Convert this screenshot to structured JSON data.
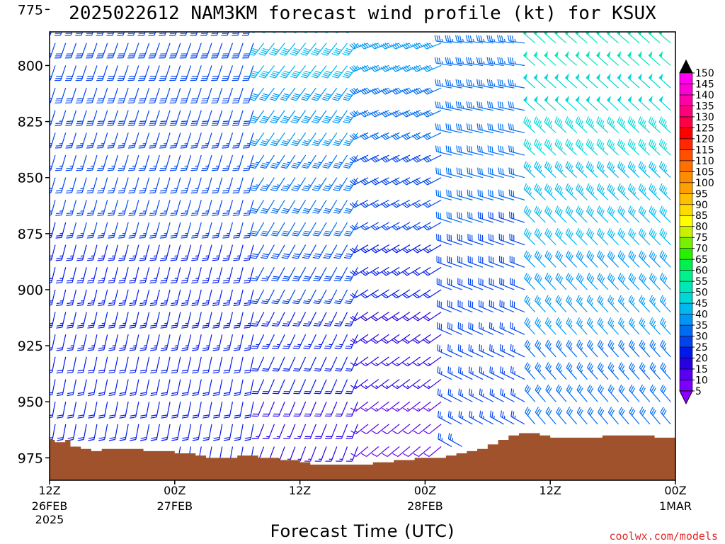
{
  "chart_data": {
    "type": "wind-barb",
    "title": "2025022612 NAM3KM forecast wind profile (kt) for KSUX",
    "xlabel": "Forecast Time (UTC)",
    "ylabel": "",
    "y_axis": {
      "reversed": true,
      "range": [
        785,
        985
      ],
      "ticks": [
        775,
        800,
        825,
        850,
        875,
        900,
        925,
        950,
        975
      ]
    },
    "x_axis": {
      "range_hours": [
        0,
        60
      ],
      "ticks": [
        {
          "hour": 0,
          "label": "12Z",
          "sub1": "26FEB",
          "sub2": "2025"
        },
        {
          "hour": 12,
          "label": "00Z",
          "sub1": "27FEB",
          "sub2": ""
        },
        {
          "hour": 24,
          "label": "12Z",
          "sub1": "",
          "sub2": ""
        },
        {
          "hour": 36,
          "label": "00Z",
          "sub1": "28FEB",
          "sub2": ""
        },
        {
          "hour": 48,
          "label": "12Z",
          "sub1": "",
          "sub2": ""
        },
        {
          "hour": 60,
          "label": "00Z",
          "sub1": "1MAR",
          "sub2": ""
        }
      ]
    },
    "colorbar": {
      "units": "kt",
      "labels": [
        5,
        10,
        15,
        20,
        25,
        30,
        35,
        40,
        45,
        50,
        55,
        60,
        65,
        70,
        75,
        80,
        85,
        90,
        95,
        100,
        105,
        110,
        115,
        120,
        125,
        130,
        135,
        140,
        145,
        150
      ],
      "colors": [
        "#7a00ff",
        "#5a00f0",
        "#2800e6",
        "#0019ea",
        "#0044ee",
        "#006cf2",
        "#0096f6",
        "#00b8f0",
        "#00d8d8",
        "#00e8b8",
        "#00f08a",
        "#00f050",
        "#28f000",
        "#78f000",
        "#c8f000",
        "#ffff00",
        "#ffdc00",
        "#ffc000",
        "#ffa000",
        "#ff8c00",
        "#ff7000",
        "#ff5000",
        "#ff2800",
        "#ff0000",
        "#ff0046",
        "#ff007a",
        "#ff00a8",
        "#ff00d2",
        "#ff00f0"
      ],
      "under_color": "#8c00ff",
      "over_color": "#000000"
    },
    "surface_pressure": {
      "color": "#a0522d",
      "hours": [
        0,
        0.5,
        1,
        1.5,
        2,
        3,
        4,
        5,
        6,
        7,
        8,
        9,
        10,
        11,
        12,
        13,
        14,
        15,
        16,
        17,
        18,
        19,
        20,
        21,
        22,
        23,
        24,
        25,
        26,
        27,
        28,
        29,
        30,
        31,
        32,
        33,
        34,
        35,
        36,
        37,
        38,
        39,
        40,
        41,
        42,
        43,
        44,
        45,
        46,
        47,
        48,
        49,
        50,
        51,
        52,
        53,
        54,
        55,
        56,
        57,
        58,
        59,
        60
      ],
      "pressure": [
        967,
        968,
        968,
        967,
        970,
        971,
        972,
        971,
        971,
        971,
        971,
        972,
        972,
        972,
        973,
        973,
        974,
        975,
        975,
        975,
        974,
        974,
        975,
        975,
        976,
        976,
        977,
        978,
        978,
        978,
        978,
        978,
        978,
        977,
        977,
        976,
        976,
        975,
        975,
        975,
        974,
        973,
        972,
        971,
        969,
        967,
        965,
        964,
        964,
        965,
        966,
        966,
        966,
        966,
        966,
        965,
        965,
        965,
        965,
        965,
        966,
        966,
        967
      ]
    },
    "wind_profile": {
      "columns_every_hours": 1,
      "levels_every_mb": 10,
      "top_mb": 770,
      "segments": [
        {
          "from_hour": 0,
          "to_hour": 20,
          "upper_dir_deg": 200,
          "upper_speed_kt": 30,
          "lower_dir_deg": 190,
          "lower_speed_kt": 20
        },
        {
          "from_hour": 20,
          "to_hour": 30,
          "upper_dir_deg": 220,
          "upper_speed_kt": 45,
          "lower_dir_deg": 200,
          "lower_speed_kt": 15
        },
        {
          "from_hour": 30,
          "to_hour": 38,
          "upper_dir_deg": 250,
          "upper_speed_kt": 40,
          "lower_dir_deg": 230,
          "lower_speed_kt": 10
        },
        {
          "from_hour": 38,
          "to_hour": 46,
          "upper_dir_deg": 275,
          "upper_speed_kt": 35,
          "lower_dir_deg": 300,
          "lower_speed_kt": 25
        },
        {
          "from_hour": 46,
          "to_hour": 60,
          "upper_dir_deg": 310,
          "upper_speed_kt": 55,
          "lower_dir_deg": 320,
          "lower_speed_kt": 30
        }
      ]
    }
  },
  "credit": "coolwx.com/models"
}
